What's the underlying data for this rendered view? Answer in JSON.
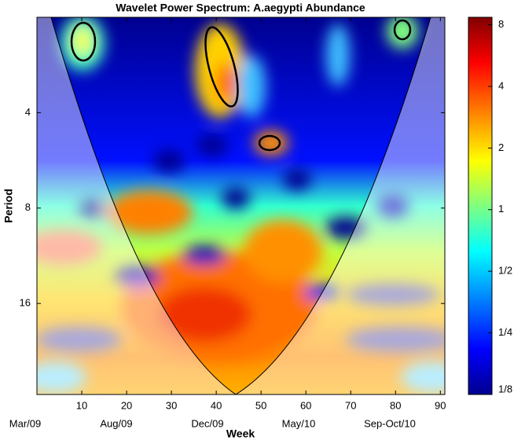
{
  "chart_data": {
    "type": "heatmap",
    "title": "Wavelet Power Spectrum: A.aegypti Abundance",
    "x_label": "Week",
    "y_label": "Period",
    "xlim": [
      0,
      91
    ],
    "xticks": [
      10,
      20,
      30,
      40,
      50,
      60,
      70,
      80,
      90
    ],
    "ylim": [
      2,
      31
    ],
    "yticks": [
      4,
      8,
      16
    ],
    "y_scale": "log2",
    "colorbar": {
      "lim": [
        0.125,
        8.7
      ],
      "scale": "log2",
      "ticks": [
        {
          "value": 0.125,
          "label": "1/8"
        },
        {
          "value": 0.25,
          "label": "1/4"
        },
        {
          "value": 0.5,
          "label": "1/2"
        },
        1,
        2,
        4,
        8
      ]
    },
    "date_labels": [
      "Mar/09",
      "Aug/09",
      "Dec/09",
      "May/10",
      "Sep-Oct/10"
    ]
  }
}
